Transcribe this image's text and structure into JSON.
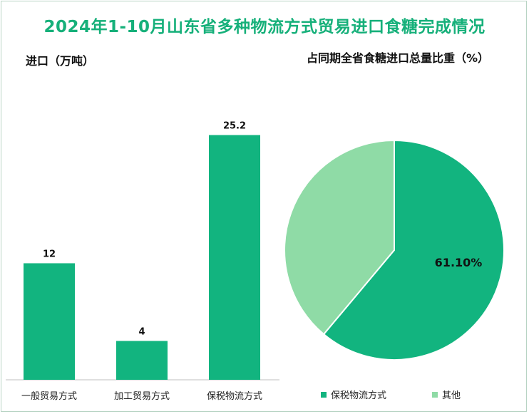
{
  "title": "2024年1-10月山东省多种物流方式贸易进口食糖完成情况",
  "colors": {
    "primary": "#12b47f",
    "secondary": "#8fdba6",
    "title": "#16b07a"
  },
  "chart_data": [
    {
      "type": "bar",
      "title": "进口（万吨）",
      "categories": [
        "一般贸易方式",
        "加工贸易方式",
        "保税物流方式"
      ],
      "values": [
        12,
        4,
        25.2
      ],
      "value_labels": [
        "12",
        "4",
        "25.2"
      ],
      "ylim": [
        0,
        27
      ]
    },
    {
      "type": "pie",
      "title": "占同期全省食糖进口总量比重（%）",
      "labels": [
        "保税物流方式",
        "其他"
      ],
      "values": [
        61.1,
        38.9
      ],
      "slice_label": "61.10%"
    }
  ]
}
